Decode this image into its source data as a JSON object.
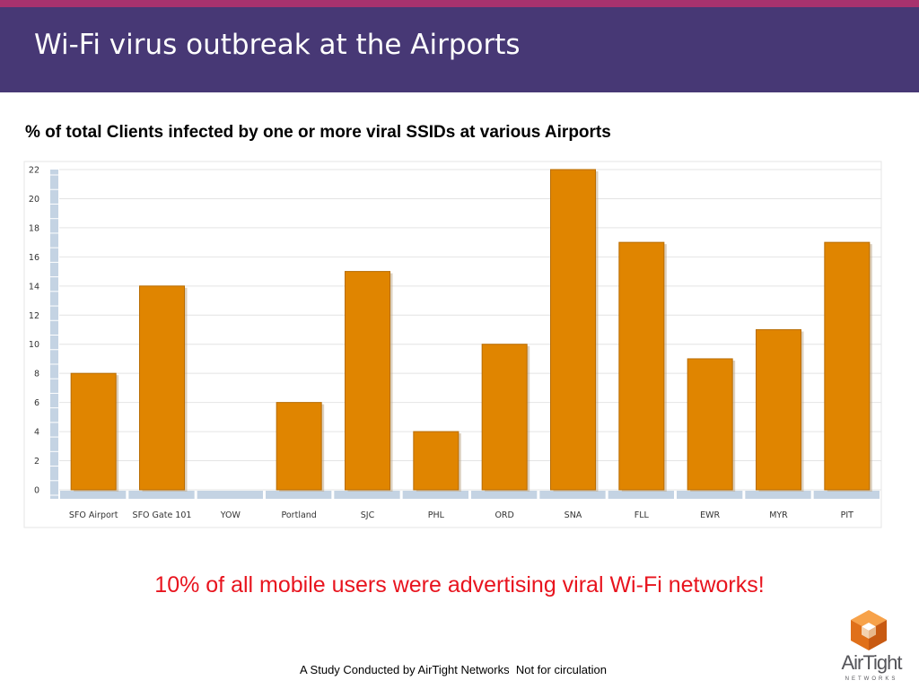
{
  "slide": {
    "title": "Wi-Fi virus outbreak at the Airports",
    "chart_heading": "% of total Clients infected by one or more viral SSIDs at various Airports",
    "callout": "10% of all mobile users were advertising viral Wi-Fi networks!",
    "footer": "A Study Conducted by AirTight Networks  Not for circulation"
  },
  "logo": {
    "name": "AirTight",
    "sub": "NETWORKS",
    "icon": "cube-icon"
  },
  "colors": {
    "header_band": "#473875",
    "header_accent": "#a8326e",
    "bar": "#e08500",
    "callout": "#e8141e"
  },
  "chart_data": {
    "type": "bar",
    "title": "% of total Clients infected by one or more viral SSIDs at various Airports",
    "categories": [
      "SFO Airport",
      "SFO Gate 101",
      "YOW",
      "Portland",
      "SJC",
      "PHL",
      "ORD",
      "SNA",
      "FLL",
      "EWR",
      "MYR",
      "PIT"
    ],
    "values": [
      8,
      14,
      0,
      6,
      15,
      4,
      10,
      22,
      17,
      9,
      11,
      17
    ],
    "ylim": [
      0,
      22
    ],
    "yticks": [
      0,
      2,
      4,
      6,
      8,
      10,
      12,
      14,
      16,
      18,
      20,
      22
    ],
    "xlabel": "",
    "ylabel": "",
    "grid": true,
    "legend": "none"
  }
}
